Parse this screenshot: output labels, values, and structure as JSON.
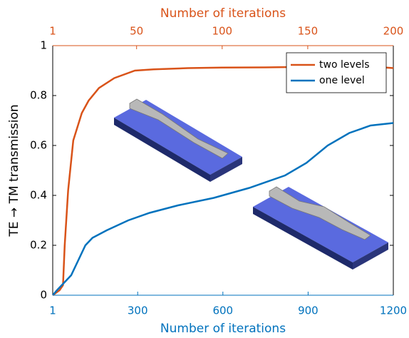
{
  "chart_data": {
    "type": "line",
    "x_label": "Number of iterations",
    "x2_label": "Number of iterations",
    "y_label": "TE → TM transmission",
    "xlim": [
      1,
      1200
    ],
    "xticks": [
      1,
      300,
      600,
      900,
      1200
    ],
    "x2lim": [
      1,
      200
    ],
    "x2ticks": [
      1,
      50,
      100,
      150,
      200
    ],
    "ylim": [
      0,
      1
    ],
    "yticks": [
      0,
      0.2,
      0.4,
      0.6,
      0.8,
      1
    ],
    "legend": "top-right",
    "series": [
      {
        "name": "two levels",
        "color": "#d95319",
        "axis": "x2",
        "x": [
          1,
          3,
          5,
          7,
          8,
          10,
          13,
          18,
          22,
          28,
          37,
          49,
          60,
          80,
          100,
          125,
          150,
          175,
          190,
          200
        ],
        "values": [
          0,
          0.01,
          0.02,
          0.04,
          0.2,
          0.42,
          0.62,
          0.73,
          0.78,
          0.83,
          0.87,
          0.9,
          0.905,
          0.91,
          0.912,
          0.913,
          0.915,
          0.915,
          0.915,
          0.91
        ]
      },
      {
        "name": "one level",
        "color": "#0072bd",
        "x": [
          1,
          16,
          41,
          66,
          91,
          116,
          141,
          191,
          267,
          342,
          442,
          568,
          693,
          819,
          894,
          969,
          1045,
          1120,
          1200
        ],
        "values": [
          0,
          0.02,
          0.05,
          0.08,
          0.14,
          0.2,
          0.23,
          0.26,
          0.3,
          0.33,
          0.36,
          0.39,
          0.43,
          0.48,
          0.53,
          0.6,
          0.65,
          0.68,
          0.69
        ]
      }
    ]
  }
}
